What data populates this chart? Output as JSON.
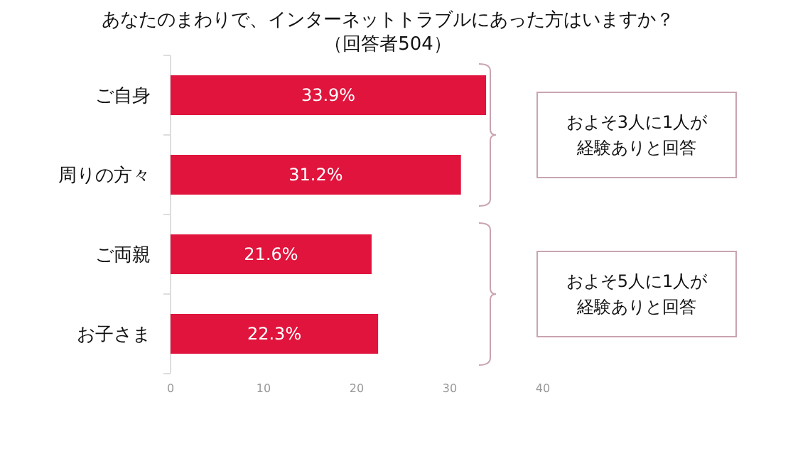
{
  "chart_data": {
    "type": "bar",
    "orientation": "horizontal",
    "title": "あなたのまわりで、インターネットトラブルにあった方はいますか？",
    "subtitle": "（回答者504）",
    "categories": [
      "ご自身",
      "周りの方々",
      "ご両親",
      "お子さま"
    ],
    "values": [
      33.9,
      31.2,
      21.6,
      22.3
    ],
    "value_labels": [
      "33.9%",
      "31.2%",
      "21.6%",
      "22.3%"
    ],
    "color": "#e0143c",
    "xlim": [
      0,
      40
    ],
    "xticks": [
      0,
      10,
      20,
      30,
      40
    ],
    "grid": false,
    "annotations": [
      "およそ3人に1人が",
      "経験ありと回答",
      "およそ5人に1人が",
      "経験ありと回答"
    ]
  }
}
